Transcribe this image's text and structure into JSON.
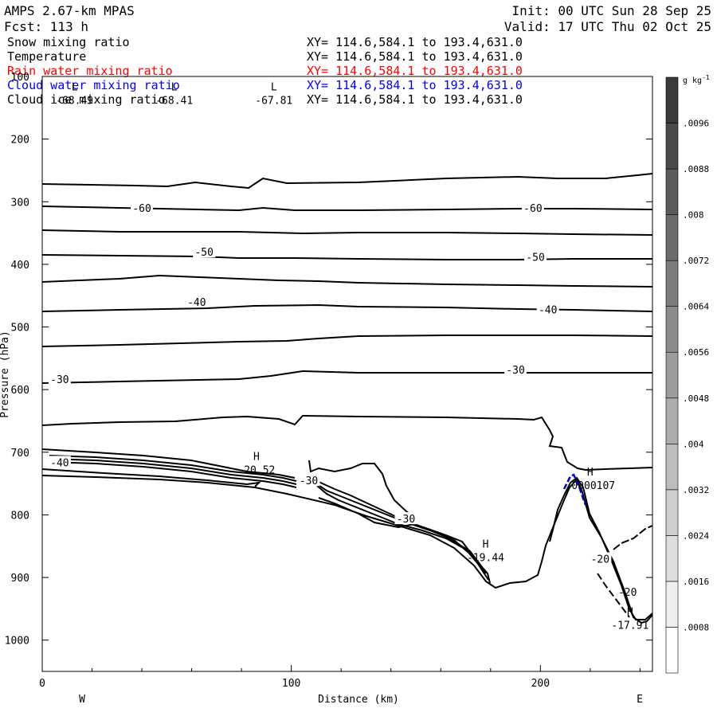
{
  "header": {
    "model": "AMPS 2.67-km MPAS",
    "fcst": "Fcst:  113 h",
    "init": "Init: 00 UTC Sun 28 Sep 25",
    "valid": "Valid: 17 UTC Thu 02 Oct 25"
  },
  "fields": [
    {
      "label": "Snow mixing ratio",
      "xy": "XY= 114.6,584.1 to 193.4,631.0",
      "color": "#000000"
    },
    {
      "label": "Temperature",
      "xy": "XY= 114.6,584.1 to 193.4,631.0",
      "color": "#000000"
    },
    {
      "label": "Rain water mixing ratio",
      "xy": "XY= 114.6,584.1 to 193.4,631.0",
      "color": "#ff0000"
    },
    {
      "label": "Cloud water mixing ratio",
      "xy": "XY= 114.6,584.1 to 193.4,631.0",
      "color": "#0000ff"
    },
    {
      "label": "Cloud ice mixing ratio",
      "xy": "XY= 114.6,584.1 to 193.4,631.0",
      "color": "#000000"
    }
  ],
  "chart_data": {
    "type": "contour cross-section",
    "xlabel": "Distance (km)",
    "ylabel": "Pressure (hPa)",
    "xlim": [
      0,
      245
    ],
    "ylim": [
      1050,
      100
    ],
    "x_ticks": [
      "0",
      "100",
      "200"
    ],
    "x_tick_values": [
      0,
      100,
      200
    ],
    "y_ticks": [
      "100",
      "200",
      "300",
      "400",
      "500",
      "600",
      "700",
      "800",
      "900",
      "1000"
    ],
    "y_tick_values": [
      100,
      200,
      300,
      400,
      500,
      600,
      700,
      800,
      900,
      1000
    ],
    "direction_west": "W",
    "direction_east": "E",
    "colorbar": {
      "units": "g kg",
      "units_exp": "-1",
      "labels": [
        ".0008",
        ".0016",
        ".0024",
        ".0032",
        ".004",
        ".0048",
        ".0056",
        ".0064",
        ".0072",
        ".008",
        ".0088",
        ".0096"
      ],
      "levels": 13,
      "color_light": "#ffffff",
      "color_dark": "#3a3a3a"
    },
    "isotherms": [
      {
        "label": "-60",
        "x": 40,
        "p": 310,
        "fill": true
      },
      {
        "label": "-60",
        "x": 197,
        "p": 310,
        "fill": true
      },
      {
        "label": "-50",
        "x": 65,
        "p": 380,
        "fill": true
      },
      {
        "label": "-50",
        "x": 198,
        "p": 388,
        "fill": true
      },
      {
        "label": "-40",
        "x": 62,
        "p": 460,
        "fill": true
      },
      {
        "label": "-40",
        "x": 203,
        "p": 472,
        "fill": true
      },
      {
        "label": "-30",
        "x": 7,
        "p": 583,
        "fill": true
      },
      {
        "label": "-30",
        "x": 190,
        "p": 568,
        "fill": true
      },
      {
        "label": "-40",
        "x": 7,
        "p": 716,
        "fill": true
      },
      {
        "label": "-30",
        "x": 107,
        "p": 745,
        "fill": true
      },
      {
        "label": "-30",
        "x": 146,
        "p": 806,
        "fill": true
      },
      {
        "label": "-20",
        "x": 224,
        "p": 870,
        "fill": true
      },
      {
        "label": "-20",
        "x": 235,
        "p": 923,
        "fill": false
      }
    ],
    "extrema": [
      {
        "letter": "L",
        "value": "-68.49",
        "x": 13,
        "p": 130
      },
      {
        "letter": "L",
        "value": "-68.41",
        "x": 53,
        "p": 130
      },
      {
        "letter": "L",
        "value": "-67.81",
        "x": 93,
        "p": 130
      },
      {
        "letter": "H",
        "value": "-20.52",
        "x": 86,
        "p": 720
      },
      {
        "letter": "H",
        "value": "-19.44",
        "x": 178,
        "p": 860
      },
      {
        "letter": "H",
        "value": ".0000107",
        "x": 220,
        "p": 745
      },
      {
        "letter": "H",
        "value": "-17.91",
        "x": 236,
        "p": 968
      }
    ]
  }
}
